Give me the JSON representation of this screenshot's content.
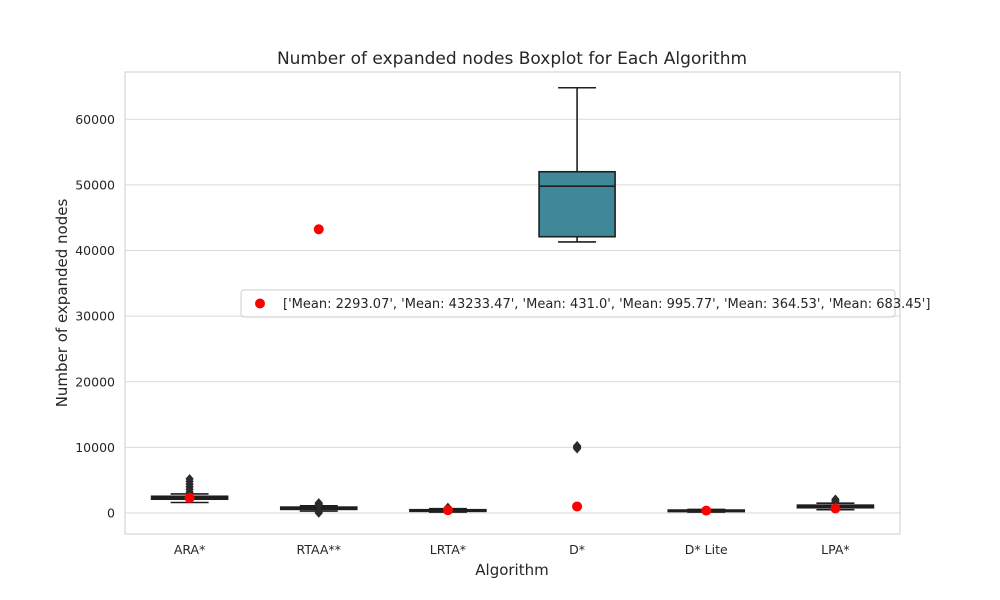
{
  "chart_data": {
    "type": "box",
    "title": "Number of expanded nodes Boxplot for Each Algorithm",
    "xlabel": "Algorithm",
    "ylabel": "Number of expanded nodes",
    "ylim": [
      -3200,
      67200
    ],
    "yticks": [
      0,
      10000,
      20000,
      30000,
      40000,
      50000,
      60000
    ],
    "ytick_labels": [
      "0",
      "10000",
      "20000",
      "30000",
      "40000",
      "50000",
      "60000"
    ],
    "grid": "horizontal",
    "legend_placement": "center-right",
    "legend_entries": [
      "['Mean: 2293.07', 'Mean: 43233.47', 'Mean: 431.0', 'Mean: 995.77', 'Mean: 364.53', 'Mean: 683.45']"
    ],
    "categories": [
      "ARA*",
      "RTAA**",
      "LRTA*",
      "D*",
      "D* Lite",
      "LPA*"
    ],
    "boxes": [
      {
        "label": "ARA*",
        "whisker_low": 1600,
        "q1": 2100,
        "median": 2250,
        "q3": 2550,
        "whisker_high": 2900,
        "outliers": [
          3200,
          3600,
          4000,
          4400,
          4800,
          5200
        ],
        "color": "#1f1f1f"
      },
      {
        "label": "RTAA**",
        "whisker_low": 300,
        "q1": 550,
        "median": 700,
        "q3": 900,
        "whisker_high": 1100,
        "outliers": [
          0,
          150,
          250,
          1250,
          1400,
          1550
        ],
        "color": "#1f1f1f"
      },
      {
        "label": "LRTA*",
        "whisker_low": 150,
        "q1": 250,
        "median": 350,
        "q3": 500,
        "whisker_high": 650,
        "outliers": [
          750,
          850
        ],
        "color": "#1f1f1f"
      },
      {
        "label": "D*",
        "whisker_low": 41300,
        "q1": 42100,
        "median": 49800,
        "q3": 52000,
        "whisker_high": 64800,
        "outliers": [
          9800,
          9950,
          10050,
          10150,
          10250
        ],
        "color": "#3f8899"
      },
      {
        "label": "D* Lite",
        "whisker_low": 150,
        "q1": 250,
        "median": 350,
        "q3": 450,
        "whisker_high": 550,
        "outliers": [],
        "color": "#1f1f1f"
      },
      {
        "label": "LPA*",
        "whisker_low": 500,
        "q1": 800,
        "median": 950,
        "q3": 1200,
        "whisker_high": 1500,
        "outliers": [
          1700,
          1900,
          2100
        ],
        "color": "#1f1f1f"
      }
    ],
    "mean_points": [
      2293.07,
      43233.47,
      431.0,
      995.77,
      364.53,
      683.45
    ],
    "mean_color": "#ff0000",
    "box_edge_color": "#1f1f1f",
    "grid_color": "#d9d9d9"
  }
}
